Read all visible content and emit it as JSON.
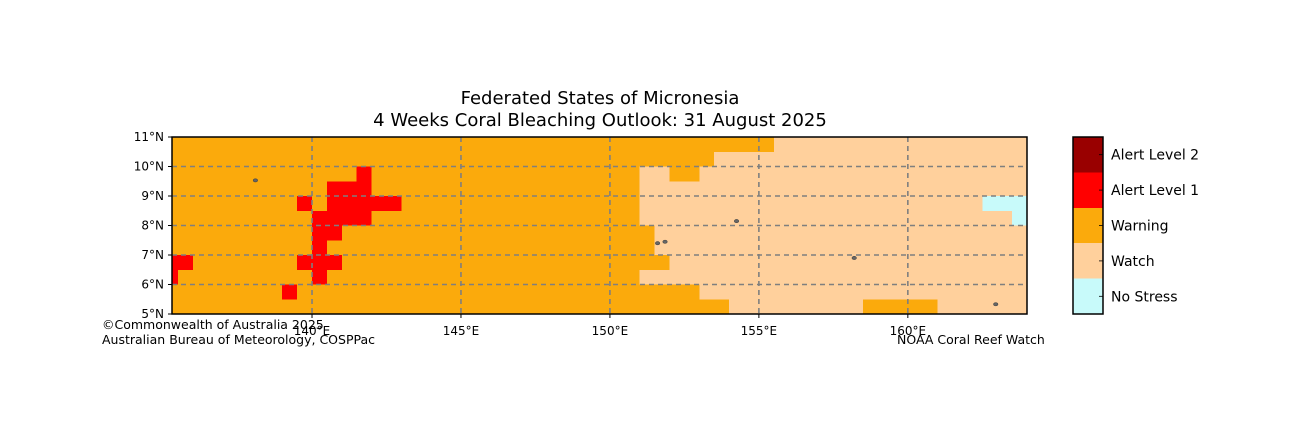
{
  "title_line1": "Federated States of Micronesia",
  "title_line2": "4 Weeks Coral Bleaching Outlook: 31 August 2025",
  "map": {
    "lon_range": [
      135.3,
      164.0
    ],
    "lat_range": [
      5.0,
      11.0
    ],
    "cell_deg": 0.5,
    "grid_lons": [
      140,
      145,
      150,
      155,
      160
    ],
    "grid_lats": [
      6,
      7,
      8,
      9,
      10
    ],
    "lon_ticks": [
      "140°E",
      "145°E",
      "150°E",
      "155°E",
      "160°E"
    ],
    "lat_ticks": [
      "5°N",
      "6°N",
      "7°N",
      "8°N",
      "9°N",
      "10°N",
      "11°N"
    ],
    "background_category": "Warning",
    "regions": [
      {
        "category": "Watch",
        "lon": [
          151.0,
          164.0
        ],
        "lat": [
          5.0,
          10.0
        ]
      },
      {
        "category": "Watch",
        "lon": [
          153.5,
          164.0
        ],
        "lat": [
          10.0,
          10.5
        ]
      },
      {
        "category": "Watch",
        "lon": [
          155.5,
          164.0
        ],
        "lat": [
          10.5,
          11.0
        ]
      },
      {
        "category": "Warning",
        "lon": [
          152.0,
          153.0
        ],
        "lat": [
          9.5,
          10.0
        ]
      },
      {
        "category": "Warning",
        "lon": [
          151.0,
          151.5
        ],
        "lat": [
          7.0,
          8.0
        ]
      },
      {
        "category": "Warning",
        "lon": [
          151.0,
          152.0
        ],
        "lat": [
          6.5,
          7.0
        ]
      },
      {
        "category": "Warning",
        "lon": [
          151.0,
          153.0
        ],
        "lat": [
          5.5,
          6.0
        ]
      },
      {
        "category": "Warning",
        "lon": [
          151.0,
          154.0
        ],
        "lat": [
          5.0,
          5.5
        ]
      },
      {
        "category": "Warning",
        "lon": [
          158.5,
          161.0
        ],
        "lat": [
          5.0,
          5.5
        ]
      },
      {
        "category": "No Stress",
        "lon": [
          162.5,
          164.0
        ],
        "lat": [
          8.5,
          9.0
        ]
      },
      {
        "category": "No Stress",
        "lon": [
          163.5,
          164.0
        ],
        "lat": [
          8.0,
          8.5
        ]
      },
      {
        "category": "Alert Level 1",
        "lon": [
          141.5,
          142.0
        ],
        "lat": [
          9.5,
          10.0
        ]
      },
      {
        "category": "Alert Level 1",
        "lon": [
          140.5,
          142.0
        ],
        "lat": [
          9.0,
          9.5
        ]
      },
      {
        "category": "Alert Level 1",
        "lon": [
          139.5,
          140.0
        ],
        "lat": [
          8.5,
          9.0
        ]
      },
      {
        "category": "Alert Level 1",
        "lon": [
          140.5,
          143.0
        ],
        "lat": [
          8.5,
          9.0
        ]
      },
      {
        "category": "Alert Level 1",
        "lon": [
          140.0,
          142.0
        ],
        "lat": [
          8.0,
          8.5
        ]
      },
      {
        "category": "Alert Level 1",
        "lon": [
          140.0,
          141.0
        ],
        "lat": [
          7.5,
          8.0
        ]
      },
      {
        "category": "Alert Level 1",
        "lon": [
          140.0,
          140.5
        ],
        "lat": [
          7.0,
          7.5
        ]
      },
      {
        "category": "Alert Level 1",
        "lon": [
          139.5,
          141.0
        ],
        "lat": [
          6.5,
          7.0
        ]
      },
      {
        "category": "Alert Level 1",
        "lon": [
          140.0,
          140.5
        ],
        "lat": [
          6.0,
          6.5
        ]
      },
      {
        "category": "Alert Level 1",
        "lon": [
          135.5,
          136.0
        ],
        "lat": [
          6.5,
          7.0
        ]
      },
      {
        "category": "Alert Level 1",
        "lon": [
          135.3,
          135.5
        ],
        "lat": [
          6.0,
          7.0
        ]
      },
      {
        "category": "Alert Level 1",
        "lon": [
          139.0,
          139.5
        ],
        "lat": [
          5.5,
          6.0
        ]
      }
    ],
    "islands": [
      {
        "lon": [
          138.1,
          9.53
        ],
        "name": "yap-island"
      },
      {
        "lon": [
          151.6,
          7.4
        ],
        "name": "chuuk-island-a"
      },
      {
        "lon": [
          151.85,
          7.45
        ],
        "name": "chuuk-island-b"
      },
      {
        "lon": [
          154.25,
          8.15
        ],
        "name": "pohnpei-outer-island"
      },
      {
        "lon": [
          158.2,
          6.9
        ],
        "name": "pohnpei-island"
      },
      {
        "lon": [
          162.95,
          5.33
        ],
        "name": "kosrae-island"
      }
    ]
  },
  "legend": {
    "items": [
      {
        "label": "Alert Level 2",
        "color": "#990000"
      },
      {
        "label": "Alert Level 1",
        "color": "#ff0000"
      },
      {
        "label": "Warning",
        "color": "#fbaa0c"
      },
      {
        "label": "Watch",
        "color": "#ffd09c"
      },
      {
        "label": "No Stress",
        "color": "#c8fafa"
      }
    ]
  },
  "colors": {
    "Alert Level 2": "#990000",
    "Alert Level 1": "#ff0000",
    "Warning": "#fbaa0c",
    "Watch": "#ffd09c",
    "No Stress": "#c8fafa",
    "gridline": "#7f7f7f",
    "island": "#666666"
  },
  "credits": {
    "left_line1": "©Commonwealth of Australia 2025",
    "left_line2": "Australian Bureau of Meteorology, COSPPac",
    "right": "NOAA Coral Reef Watch"
  }
}
